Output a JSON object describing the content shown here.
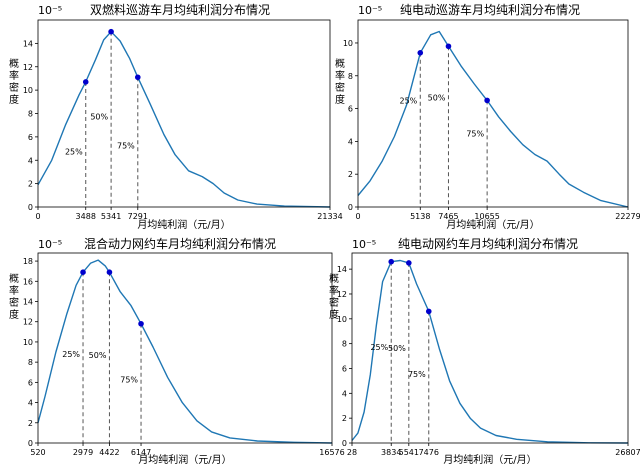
{
  "colors": {
    "curve": "#1f77b4",
    "point": "#0000cd",
    "dash": "#555555"
  },
  "chart_data": [
    {
      "type": "line",
      "title": "双燃料巡游车月均纯利润分布情况",
      "xlabel": "月均纯利润（元/月）",
      "ylabel": "概率密度",
      "exponent_label": "10⁻⁵",
      "xlim": [
        0,
        21334
      ],
      "ylim": [
        0,
        16
      ],
      "x_ticks": [
        0,
        3488,
        5341,
        7291,
        21334
      ],
      "y_ticks": [
        0,
        2,
        4,
        6,
        8,
        10,
        12,
        14
      ],
      "curve": [
        [
          0,
          1.9
        ],
        [
          1000,
          4.0
        ],
        [
          2000,
          7.0
        ],
        [
          3000,
          9.6
        ],
        [
          3488,
          10.7
        ],
        [
          4200,
          12.6
        ],
        [
          4800,
          14.3
        ],
        [
          5341,
          15.0
        ],
        [
          6000,
          14.2
        ],
        [
          6700,
          12.7
        ],
        [
          7291,
          11.1
        ],
        [
          8200,
          8.8
        ],
        [
          9200,
          6.2
        ],
        [
          10000,
          4.5
        ],
        [
          11000,
          3.1
        ],
        [
          12000,
          2.6
        ],
        [
          12800,
          2.0
        ],
        [
          13600,
          1.2
        ],
        [
          14600,
          0.6
        ],
        [
          16000,
          0.25
        ],
        [
          18000,
          0.08
        ],
        [
          21334,
          0.0
        ]
      ],
      "quantile_points": [
        {
          "x": 3488,
          "y": 10.7,
          "label": "25%",
          "label_y": 4.5
        },
        {
          "x": 5341,
          "y": 15.0,
          "label": "50%",
          "label_y": 7.5
        },
        {
          "x": 7291,
          "y": 11.1,
          "label": "75%",
          "label_y": 5.0
        }
      ]
    },
    {
      "type": "line",
      "title": "纯电动巡游车月均纯利润分布情况",
      "xlabel": "月均纯利润（元/月）",
      "ylabel": "概率密度",
      "exponent_label": "10⁻⁵",
      "xlim": [
        0,
        22279
      ],
      "ylim": [
        0,
        11.4
      ],
      "x_ticks": [
        0,
        5138,
        7465,
        10655,
        22279
      ],
      "y_ticks": [
        0,
        2,
        4,
        6,
        8,
        10
      ],
      "curve": [
        [
          0,
          0.7
        ],
        [
          1000,
          1.6
        ],
        [
          2000,
          2.8
        ],
        [
          3000,
          4.3
        ],
        [
          4000,
          6.2
        ],
        [
          5138,
          9.4
        ],
        [
          6000,
          10.5
        ],
        [
          6700,
          10.7
        ],
        [
          7465,
          9.8
        ],
        [
          8500,
          8.6
        ],
        [
          9600,
          7.5
        ],
        [
          10655,
          6.5
        ],
        [
          11600,
          5.5
        ],
        [
          12600,
          4.6
        ],
        [
          13600,
          3.8
        ],
        [
          14600,
          3.2
        ],
        [
          15600,
          2.8
        ],
        [
          16600,
          2.0
        ],
        [
          17400,
          1.4
        ],
        [
          18600,
          0.9
        ],
        [
          20000,
          0.4
        ],
        [
          22279,
          0.0
        ]
      ],
      "quantile_points": [
        {
          "x": 5138,
          "y": 9.4,
          "label": "25%",
          "label_y": 6.3
        },
        {
          "x": 7465,
          "y": 9.8,
          "label": "50%",
          "label_y": 6.5
        },
        {
          "x": 10655,
          "y": 6.5,
          "label": "75%",
          "label_y": 4.3
        }
      ]
    },
    {
      "type": "line",
      "title": "混合动力网约车月均纯利润分布情况",
      "xlabel": "月均纯利润（元/月）",
      "ylabel": "概率密度",
      "exponent_label": "10⁻⁵",
      "xlim": [
        520,
        16576
      ],
      "ylim": [
        0,
        18.8
      ],
      "x_ticks": [
        520,
        2979,
        4422,
        6147,
        16576
      ],
      "y_ticks": [
        0,
        2,
        4,
        6,
        8,
        10,
        12,
        14,
        16,
        18
      ],
      "curve": [
        [
          520,
          2.0
        ],
        [
          900,
          4.6
        ],
        [
          1500,
          9.0
        ],
        [
          2100,
          12.8
        ],
        [
          2600,
          15.6
        ],
        [
          2979,
          16.9
        ],
        [
          3400,
          17.8
        ],
        [
          3800,
          18.1
        ],
        [
          4200,
          17.5
        ],
        [
          4422,
          16.9
        ],
        [
          5000,
          15.0
        ],
        [
          5600,
          13.6
        ],
        [
          6147,
          11.8
        ],
        [
          6800,
          9.5
        ],
        [
          7600,
          6.5
        ],
        [
          8400,
          4.0
        ],
        [
          9200,
          2.2
        ],
        [
          10000,
          1.1
        ],
        [
          11000,
          0.5
        ],
        [
          12500,
          0.2
        ],
        [
          14500,
          0.07
        ],
        [
          16576,
          0.0
        ]
      ],
      "quantile_points": [
        {
          "x": 2979,
          "y": 16.9,
          "label": "25%",
          "label_y": 8.5
        },
        {
          "x": 4422,
          "y": 16.9,
          "label": "50%",
          "label_y": 8.4
        },
        {
          "x": 6147,
          "y": 11.8,
          "label": "75%",
          "label_y": 6.0
        }
      ]
    },
    {
      "type": "line",
      "title": "纯电动网约车月均纯利润分布情况",
      "xlabel": "月均纯利润（元/月）",
      "ylabel": "概率密度",
      "exponent_label": "10⁻⁵",
      "xlim": [
        28,
        26807
      ],
      "ylim": [
        0,
        15.3
      ],
      "x_ticks": [
        28,
        3834,
        5541,
        7476,
        26807
      ],
      "x_tick_labels": [
        "28",
        "3834",
        "5541",
        "7476",
        "26807"
      ],
      "y_ticks": [
        0,
        2,
        4,
        6,
        8,
        10,
        12,
        14
      ],
      "curve": [
        [
          28,
          0.2
        ],
        [
          600,
          0.8
        ],
        [
          1200,
          2.5
        ],
        [
          1800,
          5.5
        ],
        [
          2400,
          9.5
        ],
        [
          3000,
          13.0
        ],
        [
          3834,
          14.6
        ],
        [
          4700,
          14.7
        ],
        [
          5541,
          14.5
        ],
        [
          6300,
          12.8
        ],
        [
          7476,
          10.6
        ],
        [
          8500,
          7.6
        ],
        [
          9500,
          5.0
        ],
        [
          10500,
          3.2
        ],
        [
          11500,
          2.0
        ],
        [
          12500,
          1.2
        ],
        [
          14000,
          0.6
        ],
        [
          16000,
          0.3
        ],
        [
          19000,
          0.1
        ],
        [
          23000,
          0.02
        ],
        [
          26807,
          0.0
        ]
      ],
      "quantile_points": [
        {
          "x": 3834,
          "y": 14.6,
          "label": "25%",
          "label_y": 7.5
        },
        {
          "x": 5541,
          "y": 14.5,
          "label": "50%",
          "label_y": 7.4
        },
        {
          "x": 7476,
          "y": 10.6,
          "label": "75%",
          "label_y": 5.3
        }
      ]
    }
  ]
}
